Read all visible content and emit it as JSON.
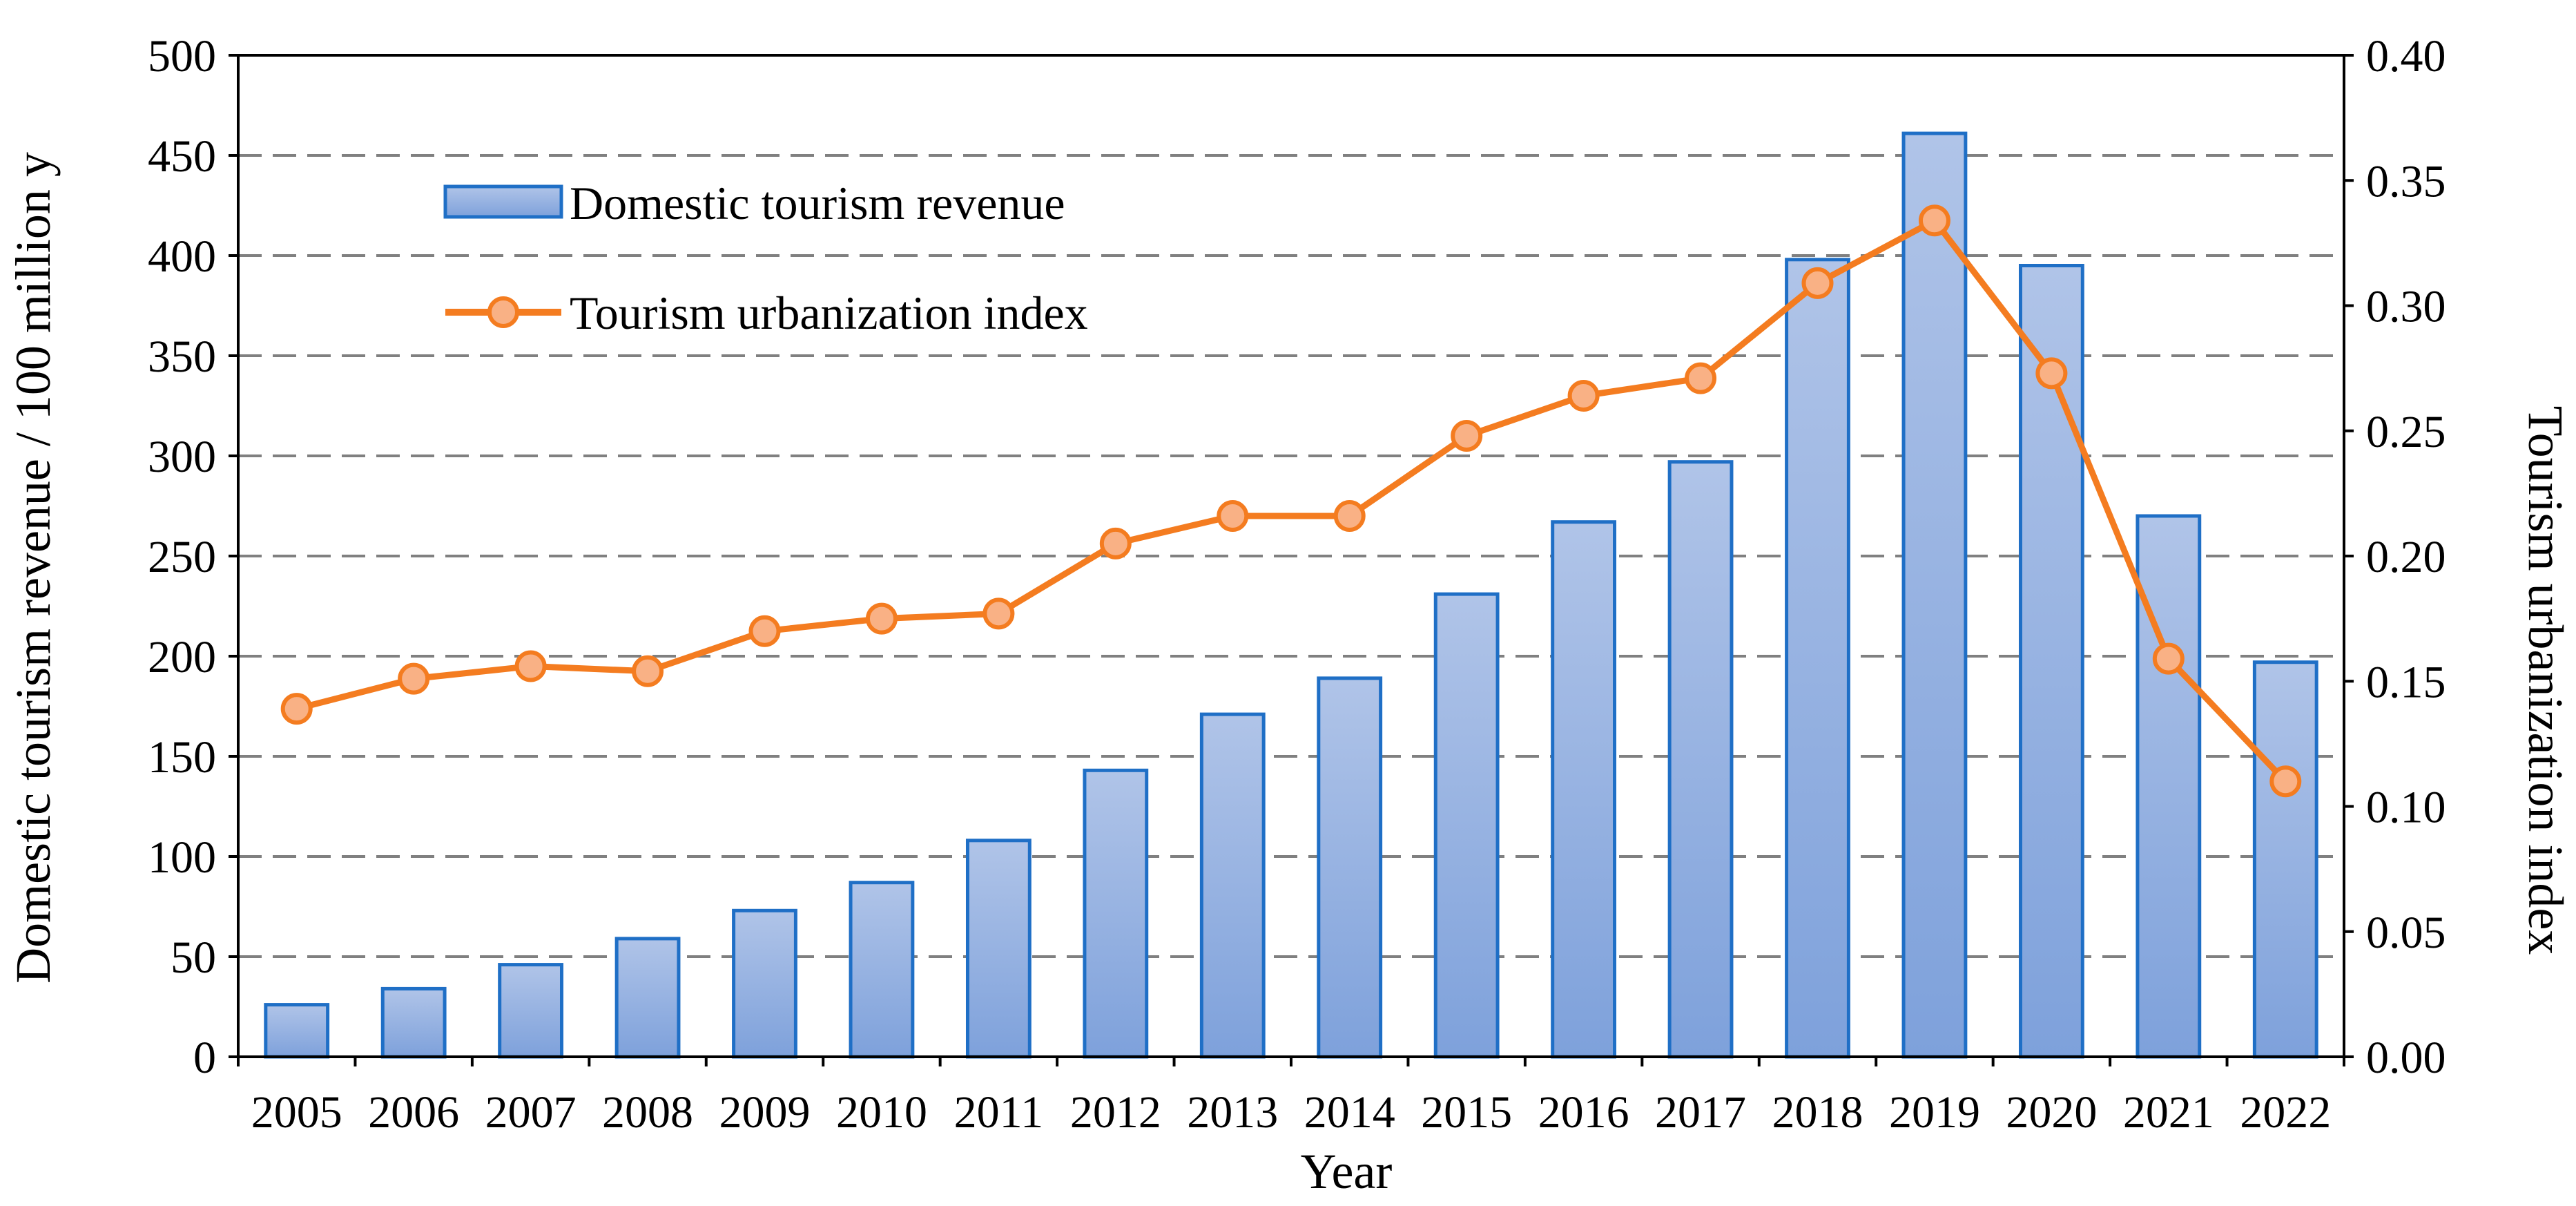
{
  "chart_data": {
    "type": "bar",
    "categories": [
      "2005",
      "2006",
      "2007",
      "2008",
      "2009",
      "2010",
      "2011",
      "2012",
      "2013",
      "2014",
      "2015",
      "2016",
      "2017",
      "2018",
      "2019",
      "2020",
      "2021",
      "2022"
    ],
    "series": [
      {
        "name": "Domestic tourism revenue",
        "type": "bar",
        "axis": "left",
        "values": [
          26,
          34,
          46,
          59,
          73,
          87,
          108,
          143,
          171,
          189,
          231,
          267,
          297,
          398,
          461,
          395,
          270,
          197
        ]
      },
      {
        "name": "Tourism urbanization index",
        "type": "line",
        "axis": "right",
        "values": [
          0.139,
          0.151,
          0.156,
          0.154,
          0.17,
          0.175,
          0.177,
          0.205,
          0.216,
          0.216,
          0.248,
          0.264,
          0.271,
          0.309,
          0.334,
          0.273,
          0.159,
          0.11
        ]
      }
    ],
    "xlabel": "Year",
    "ylabel": "Domestic tourism revenue / 100 million y",
    "y2label": "Tourism urbanization index",
    "ylim": [
      0,
      500
    ],
    "y2lim": [
      0,
      0.4
    ],
    "yticks": [
      "0",
      "50",
      "100",
      "150",
      "200",
      "250",
      "300",
      "350",
      "400",
      "450",
      "500"
    ],
    "y2ticks": [
      "0.00",
      "0.05",
      "0.10",
      "0.15",
      "0.20",
      "0.25",
      "0.30",
      "0.35",
      "0.40"
    ],
    "grid": "horizontal dashed",
    "legend_position": "top-left",
    "colors": {
      "bar_top": "#b0c4e8",
      "bar_bottom": "#7ea1db",
      "bar_edge": "#1f6fc6",
      "line": "#f47c20",
      "marker_fill": "#f9b185",
      "grid": "#808080",
      "axis": "#000000"
    }
  }
}
